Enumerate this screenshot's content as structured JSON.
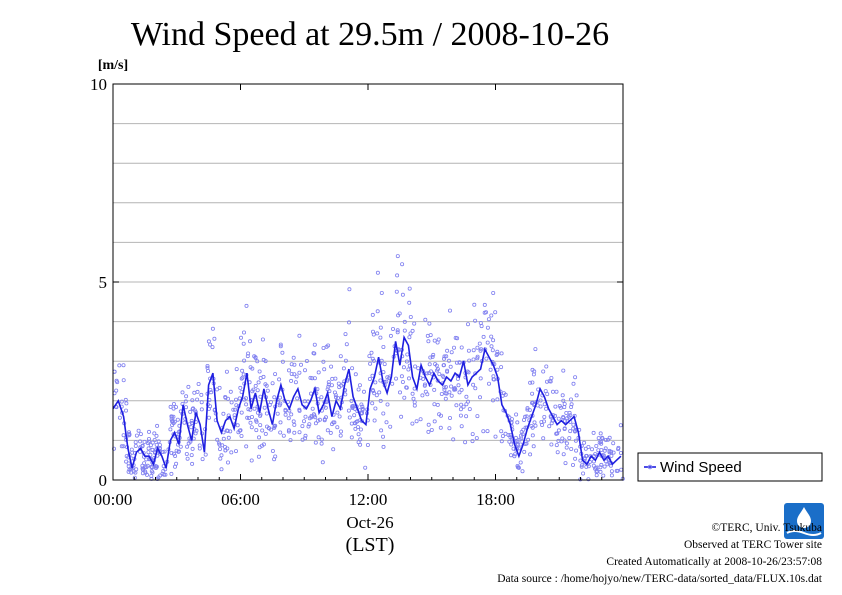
{
  "chart_data": {
    "type": "scatter",
    "title": "Wind Speed at 29.5m / 2008-10-26",
    "ylabel": "[m/s]",
    "xlabel": "(LST)",
    "date_label": "Oct-26",
    "ylim": [
      0,
      10
    ],
    "xlim_hours": [
      0,
      24
    ],
    "y_ticks": [
      "0",
      "5",
      "10"
    ],
    "x_ticks": [
      {
        "hour": 0,
        "label": "00:00"
      },
      {
        "hour": 6,
        "label": "06:00"
      },
      {
        "hour": 12,
        "label": "12:00"
      },
      {
        "hour": 18,
        "label": "18:00"
      }
    ],
    "grid": true,
    "legend": {
      "position": "right",
      "label": "Wind Speed"
    },
    "colors": {
      "line": "#1f1fe0",
      "points": "#8080f0"
    },
    "series": [
      {
        "name": "Wind Speed",
        "x_hours": [
          0,
          0.25,
          0.5,
          0.7,
          0.9,
          1.1,
          1.3,
          1.5,
          1.7,
          1.9,
          2.1,
          2.3,
          2.5,
          2.7,
          2.9,
          3.1,
          3.3,
          3.5,
          3.7,
          3.9,
          4.1,
          4.3,
          4.5,
          4.7,
          4.9,
          5.1,
          5.3,
          5.5,
          5.7,
          5.9,
          6.1,
          6.3,
          6.5,
          6.7,
          6.9,
          7.1,
          7.3,
          7.5,
          7.7,
          7.9,
          8.1,
          8.3,
          8.5,
          8.7,
          8.9,
          9.1,
          9.3,
          9.5,
          9.7,
          9.9,
          10.1,
          10.3,
          10.5,
          10.7,
          10.9,
          11.1,
          11.3,
          11.5,
          11.7,
          11.9,
          12.1,
          12.3,
          12.5,
          12.7,
          12.9,
          13.1,
          13.3,
          13.5,
          13.7,
          13.9,
          14.1,
          14.3,
          14.5,
          14.7,
          14.9,
          15.1,
          15.3,
          15.5,
          15.7,
          15.9,
          16.1,
          16.3,
          16.5,
          16.7,
          16.9,
          17.1,
          17.3,
          17.5,
          17.7,
          17.9,
          18.1,
          18.3,
          18.5,
          18.7,
          18.9,
          19.1,
          19.3,
          19.5,
          19.7,
          19.9,
          20.1,
          20.3,
          20.5,
          20.7,
          20.9,
          21.1,
          21.3,
          21.5,
          21.7,
          21.9,
          22.1,
          22.3,
          22.5,
          22.7,
          22.9,
          23.1,
          23.3,
          23.5,
          23.7,
          23.9
        ],
        "values": [
          1.8,
          2.0,
          1.6,
          0.8,
          0.3,
          0.7,
          0.8,
          0.6,
          0.6,
          0.4,
          0.8,
          0.6,
          0.3,
          1.0,
          1.2,
          0.9,
          1.9,
          1.4,
          1.0,
          1.7,
          1.4,
          0.7,
          2.4,
          2.7,
          1.5,
          1.2,
          1.5,
          1.6,
          1.3,
          1.8,
          2.1,
          2.7,
          1.8,
          2.2,
          1.7,
          2.3,
          1.8,
          1.4,
          2.0,
          2.4,
          2.0,
          1.8,
          2.1,
          2.3,
          1.9,
          1.8,
          2.0,
          2.3,
          1.7,
          1.9,
          2.2,
          1.6,
          2.0,
          1.8,
          2.4,
          2.8,
          2.1,
          1.8,
          1.5,
          1.4,
          2.3,
          2.6,
          3.1,
          2.5,
          2.2,
          2.6,
          3.5,
          2.9,
          3.6,
          3.4,
          2.6,
          2.3,
          2.9,
          2.6,
          2.4,
          2.7,
          2.5,
          2.4,
          2.6,
          2.5,
          2.7,
          2.6,
          3.0,
          2.4,
          2.6,
          2.7,
          2.8,
          3.3,
          3.1,
          2.9,
          2.6,
          1.9,
          1.7,
          1.4,
          0.9,
          0.6,
          0.9,
          1.3,
          1.6,
          1.9,
          2.3,
          2.1,
          1.8,
          1.6,
          1.4,
          1.5,
          1.4,
          1.5,
          1.6,
          1.2,
          0.5,
          0.4,
          0.6,
          0.5,
          0.7,
          0.5,
          0.6,
          0.4,
          0.5,
          0.6
        ]
      }
    ]
  },
  "legend_label": "Wind Speed",
  "footer": {
    "copyright": "©TERC, Univ. Tsukuba",
    "observed": "Observed at TERC Tower site",
    "created": "Created Automatically at 2008-10-26/23:57:08",
    "source": "Data source : /home/hojyo/new/TERC-data/sorted_data/FLUX.10s.dat"
  },
  "logo": {
    "icon": "terc-logo-icon",
    "text": "TERC",
    "color": "#1a6ec8"
  }
}
